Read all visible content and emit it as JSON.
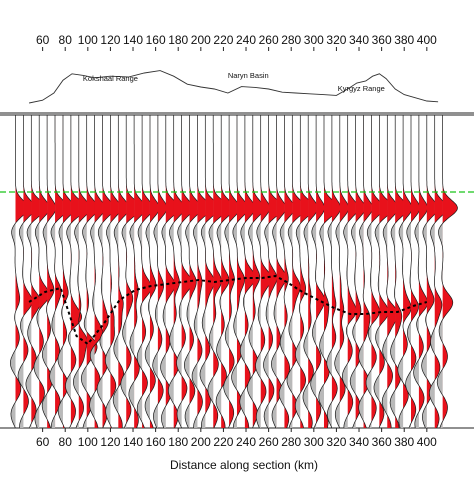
{
  "chart_data": {
    "type": "line",
    "xlabel": "Distance along section (km)",
    "xlim": [
      48,
      410
    ],
    "x_ticks": [
      60,
      80,
      100,
      120,
      140,
      160,
      180,
      200,
      220,
      240,
      260,
      280,
      300,
      320,
      340,
      360,
      380,
      400
    ],
    "x_tick_labels": [
      "60",
      "80",
      "100",
      "120",
      "140",
      "160",
      "180",
      "200",
      "220",
      "240",
      "260",
      "280",
      "300",
      "320",
      "340",
      "360",
      "380",
      "400"
    ],
    "topography": {
      "x": [
        48,
        60,
        70,
        78,
        86,
        96,
        106,
        120,
        136,
        150,
        164,
        176,
        188,
        200,
        212,
        224,
        236,
        248,
        260,
        272,
        284,
        296,
        308,
        320,
        330,
        338,
        346,
        352,
        358,
        364,
        372,
        380,
        390,
        400,
        410
      ],
      "relief": [
        0.05,
        0.12,
        0.3,
        0.62,
        0.78,
        0.74,
        0.68,
        0.72,
        0.7,
        0.8,
        0.86,
        0.72,
        0.52,
        0.45,
        0.4,
        0.3,
        0.46,
        0.44,
        0.4,
        0.32,
        0.3,
        0.28,
        0.26,
        0.24,
        0.4,
        0.55,
        0.6,
        0.72,
        0.78,
        0.66,
        0.4,
        0.26,
        0.18,
        0.1,
        0.08
      ]
    },
    "region_labels": [
      "Kokshaal Range",
      "Naryn Basin",
      "Kyrgyz Range"
    ],
    "reference_line": {
      "depth": 0.0,
      "style": "dashed",
      "color": "#19c419"
    },
    "interface_line": {
      "style": "dotted",
      "x": [
        48,
        62,
        76,
        90,
        100,
        114,
        128,
        142,
        156,
        170,
        184,
        198,
        212,
        226,
        240,
        254,
        266,
        276,
        290,
        304,
        318,
        332,
        346,
        360,
        374,
        388,
        400
      ],
      "depth": [
        0.55,
        0.5,
        0.48,
        0.72,
        0.76,
        0.66,
        0.54,
        0.49,
        0.47,
        0.46,
        0.45,
        0.44,
        0.45,
        0.44,
        0.43,
        0.43,
        0.42,
        0.45,
        0.5,
        0.54,
        0.58,
        0.61,
        0.61,
        0.6,
        0.6,
        0.57,
        0.55
      ]
    },
    "trace_spacing_km": 7,
    "positive_fill": "#e8111b",
    "negative_fill": "#b9b9b9",
    "grid": false
  }
}
